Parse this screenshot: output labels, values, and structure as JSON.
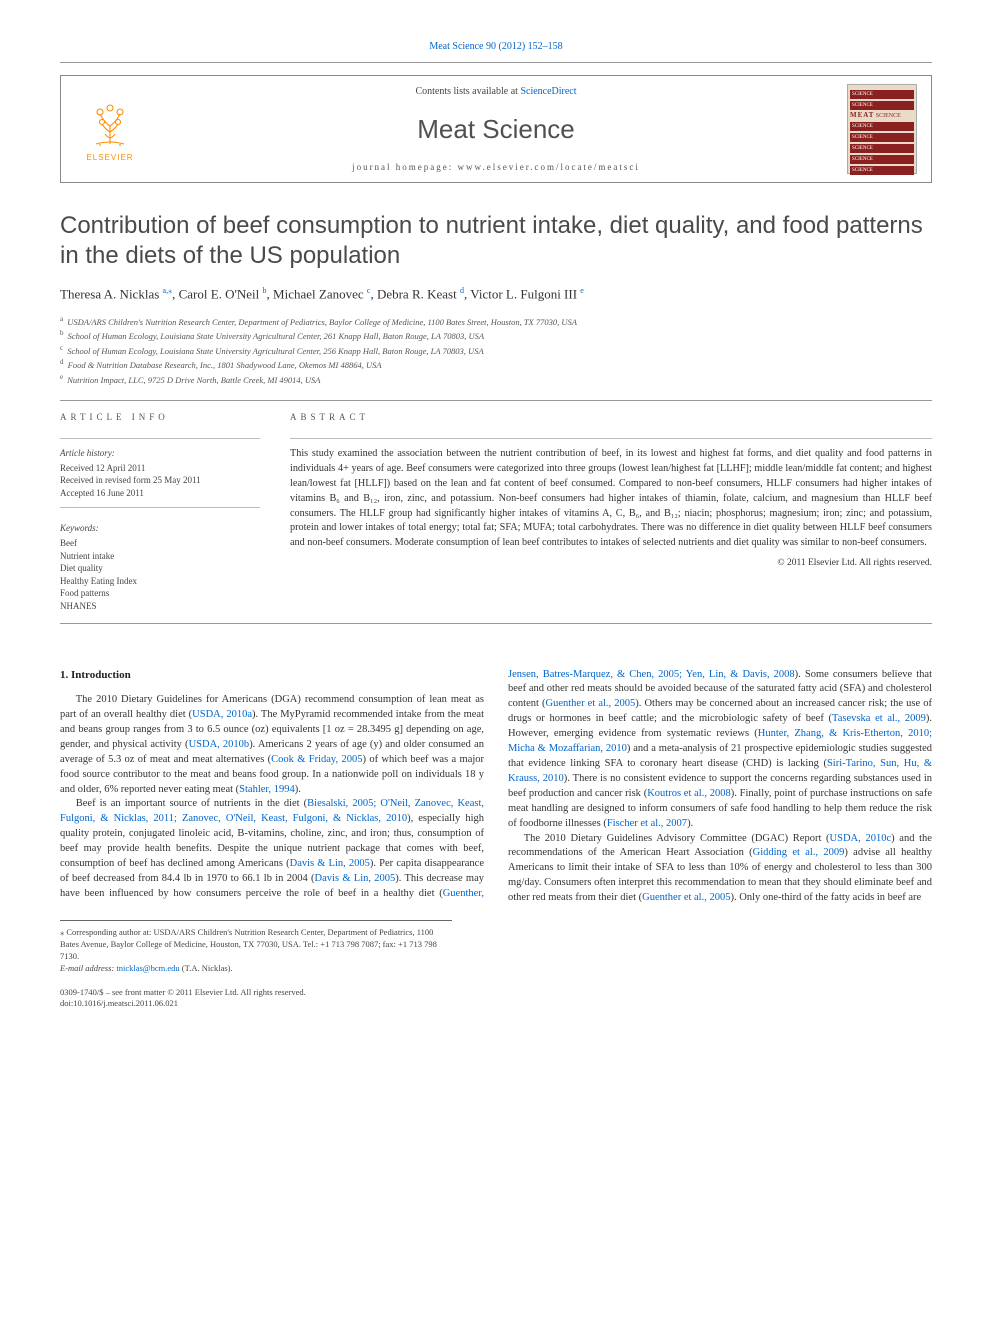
{
  "journal_ref": "Meat Science 90 (2012) 152–158",
  "header": {
    "contents_prefix": "Contents lists available at ",
    "contents_link": "ScienceDirect",
    "journal_name": "Meat Science",
    "homepage_prefix": "journal homepage: ",
    "homepage_url": "www.elsevier.com/locate/meatsci",
    "publisher_logo_text": "ELSEVIER",
    "cover_title1": "MEAT",
    "cover_title2": "SCIENCE"
  },
  "title": "Contribution of beef consumption to nutrient intake, diet quality, and food patterns in the diets of the US population",
  "authors_html": "Theresa A. Nicklas <sup>a,</sup><sup>⁎</sup>, Carol E. O'Neil <sup>b</sup>, Michael Zanovec <sup>c</sup>, Debra R. Keast <sup>d</sup>, Victor L. Fulgoni III <sup>e</sup>",
  "affiliations": [
    {
      "sup": "a",
      "text": "USDA/ARS Children's Nutrition Research Center, Department of Pediatrics, Baylor College of Medicine, 1100 Bates Street, Houston, TX 77030, USA"
    },
    {
      "sup": "b",
      "text": "School of Human Ecology, Louisiana State University Agricultural Center, 261 Knapp Hall, Baton Rouge, LA 70803, USA"
    },
    {
      "sup": "c",
      "text": "School of Human Ecology, Louisiana State University Agricultural Center, 256 Knapp Hall, Baton Rouge, LA 70803, USA"
    },
    {
      "sup": "d",
      "text": "Food & Nutrition Database Research, Inc., 1801 Shadywood Lane, Okemos MI 48864, USA"
    },
    {
      "sup": "e",
      "text": "Nutrition Impact, LLC, 9725 D Drive North, Battle Creek, MI 49014, USA"
    }
  ],
  "info": {
    "label": "ARTICLE INFO",
    "history_head": "Article history:",
    "received": "Received 12 April 2011",
    "revised": "Received in revised form 25 May 2011",
    "accepted": "Accepted 16 June 2011",
    "keywords_head": "Keywords:",
    "keywords": [
      "Beef",
      "Nutrient intake",
      "Diet quality",
      "Healthy Eating Index",
      "Food patterns",
      "NHANES"
    ]
  },
  "abstract": {
    "label": "ABSTRACT",
    "text": "This study examined the association between the nutrient contribution of beef, in its lowest and highest fat forms, and diet quality and food patterns in individuals 4+ years of age. Beef consumers were categorized into three groups (lowest lean/highest fat [LLHF]; middle lean/middle fat content; and highest lean/lowest fat [HLLF]) based on the lean and fat content of beef consumed. Compared to non-beef consumers, HLLF consumers had higher intakes of vitamins B₆ and B₁₂, iron, zinc, and potassium. Non-beef consumers had higher intakes of thiamin, folate, calcium, and magnesium than HLLF beef consumers. The HLLF group had significantly higher intakes of vitamins A, C, B₆, and B₁₂; niacin; phosphorus; magnesium; iron; zinc; and potassium, protein and lower intakes of total energy; total fat; SFA; MUFA; total carbohydrates. There was no difference in diet quality between HLLF beef consumers and non-beef consumers. Moderate consumption of lean beef contributes to intakes of selected nutrients and diet quality was similar to non-beef consumers.",
    "copyright": "© 2011 Elsevier Ltd. All rights reserved."
  },
  "body": {
    "intro_head": "1. Introduction",
    "p1a": "The 2010 Dietary Guidelines for Americans (DGA) recommend consumption of lean meat as part of an overall healthy diet (",
    "p1_link1": "USDA, 2010a",
    "p1b": "). The MyPyramid recommended intake from the meat and beans group ranges from 3 to 6.5 ounce (oz) equivalents [1 oz = 28.3495 g] depending on age, gender, and physical activity (",
    "p1_link2": "USDA, 2010b",
    "p1c": "). Americans 2 years of age (y) and older consumed an average of 5.3 oz of meat and meat alternatives (",
    "p1_link3": "Cook & Friday, 2005",
    "p1d": ") of which beef was a major food source contributor to the meat and beans food group. In a nationwide poll on individuals 18 y and older, 6% reported never eating meat (",
    "p1_link4": "Stahler, 1994",
    "p1e": ").",
    "p2a": "Beef is an important source of nutrients in the diet (",
    "p2_link1": "Biesalski, 2005; O'Neil, Zanovec, Keast, Fulgoni, & Nicklas, 2011; Zanovec, O'Neil, Keast, Fulgoni, & Nicklas, 2010",
    "p2b": "), especially high quality protein, conjugated linoleic acid, B-vitamins, choline, zinc, and iron; thus, consumption of beef may provide health benefits. Despite the unique nutrient package that comes with beef, consumption of beef has declined among Americans (",
    "p2_link2": "Davis & Lin, 2005",
    "p2c": "). Per capita disappearance of beef ",
    "p3a": "decreased from 84.4 lb in 1970 to 66.1 lb in 2004 (",
    "p3_link1": "Davis & Lin, 2005",
    "p3b": "). This decrease may have been influenced by how consumers perceive the role of beef in a healthy diet (",
    "p3_link2": "Guenther, Jensen, Batres-Marquez, & Chen, 2005; Yen, Lin, & Davis, 2008",
    "p3c": "). Some consumers believe that beef and other red meats should be avoided because of the saturated fatty acid (SFA) and cholesterol content (",
    "p3_link3": "Guenther et al., 2005",
    "p3d": "). Others may be concerned about an increased cancer risk; the use of drugs or hormones in beef cattle; and the microbiologic safety of beef (",
    "p3_link4": "Tasevska et al., 2009",
    "p3e": "). However, emerging evidence from systematic reviews (",
    "p3_link5": "Hunter, Zhang, & Kris-Etherton, 2010; Micha & Mozaffarian, 2010",
    "p3f": ") and a meta-analysis of 21 prospective epidemiologic studies suggested that evidence linking SFA to coronary heart disease (CHD) is lacking (",
    "p3_link6": "Siri-Tarino, Sun, Hu, & Krauss, 2010",
    "p3g": "). There is no consistent evidence to support the concerns regarding substances used in beef production and cancer risk (",
    "p3_link7": "Koutros et al., 2008",
    "p3h": "). Finally, point of purchase instructions on safe meat handling are designed to inform consumers of safe food handling to help them reduce the risk of foodborne illnesses (",
    "p3_link8": "Fischer et al., 2007",
    "p3i": ").",
    "p4a": "The 2010 Dietary Guidelines Advisory Committee (DGAC) Report (",
    "p4_link1": "USDA, 2010c",
    "p4b": ") and the recommendations of the American Heart Association (",
    "p4_link2": "Gidding et al., 2009",
    "p4c": ") advise all healthy Americans to limit their intake of SFA to less than 10% of energy and cholesterol to less than 300 mg/day. Consumers often interpret this recommendation to mean that they should eliminate beef and other red meats from their diet (",
    "p4_link3": "Guenther et al., 2005",
    "p4d": "). Only one-third of the fatty acids in beef are"
  },
  "footnote": {
    "corr": "⁎ Corresponding author at: USDA/ARS Children's Nutrition Research Center, Department of Pediatrics, 1100 Bates Avenue, Baylor College of Medicine, Houston, TX 77030, USA. Tel.: +1 713 798 7087; fax: +1 713 798 7130.",
    "email_label": "E-mail address: ",
    "email": "tnicklas@bcm.edu",
    "email_name": " (T.A. Nicklas)."
  },
  "bottom": {
    "issn": "0309-1740/$ – see front matter © 2011 Elsevier Ltd. All rights reserved.",
    "doi": "doi:10.1016/j.meatsci.2011.06.021"
  },
  "colors": {
    "link": "#0066cc",
    "elsevier_orange": "#ff8c00",
    "cover_bg": "#e8dcc8",
    "cover_red": "#8b2020",
    "text": "#333333",
    "rule": "#999999"
  },
  "fonts": {
    "body": "Georgia, Times New Roman, serif",
    "heading": "Trebuchet MS, Arial, sans-serif",
    "body_size_pt": 10.5,
    "title_size_pt": 24,
    "journal_size_pt": 26,
    "abstract_size_pt": 10.2,
    "info_size_pt": 9,
    "footnote_size_pt": 8.5
  }
}
